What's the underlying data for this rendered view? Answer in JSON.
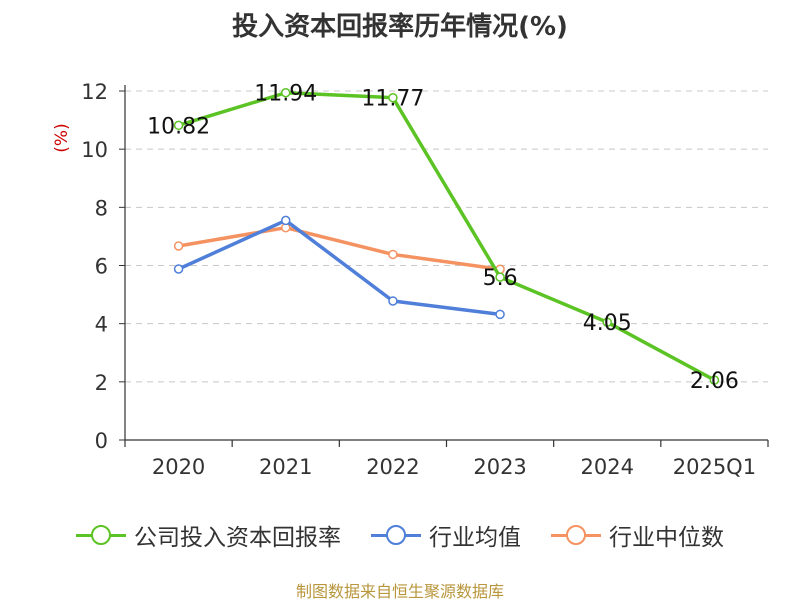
{
  "chart_data": {
    "type": "line",
    "title": "投入资本回报率历年情况(%)",
    "ylabel": "(%)",
    "categories": [
      "2020",
      "2021",
      "2022",
      "2023",
      "2024",
      "2025Q1"
    ],
    "yticks": [
      "0",
      "2",
      "4",
      "6",
      "8",
      "10",
      "12"
    ],
    "ylim": [
      0,
      12
    ],
    "grid": true,
    "legend_position": "bottom",
    "series": [
      {
        "name": "公司投入资本回报率",
        "color": "#5cc324",
        "values": [
          10.82,
          11.94,
          11.77,
          5.6,
          4.05,
          2.06
        ],
        "labels": [
          "10.82",
          "11.94",
          "11.77",
          "5.6",
          "4.05",
          "2.06"
        ]
      },
      {
        "name": "行业均值",
        "color": "#4f7fd9",
        "values": [
          5.88,
          7.55,
          4.78,
          4.32,
          null,
          null
        ]
      },
      {
        "name": "行业中位数",
        "color": "#f49261",
        "values": [
          6.67,
          7.3,
          6.38,
          5.87,
          null,
          null
        ]
      }
    ]
  },
  "source": "制图数据来自恒生聚源数据库"
}
